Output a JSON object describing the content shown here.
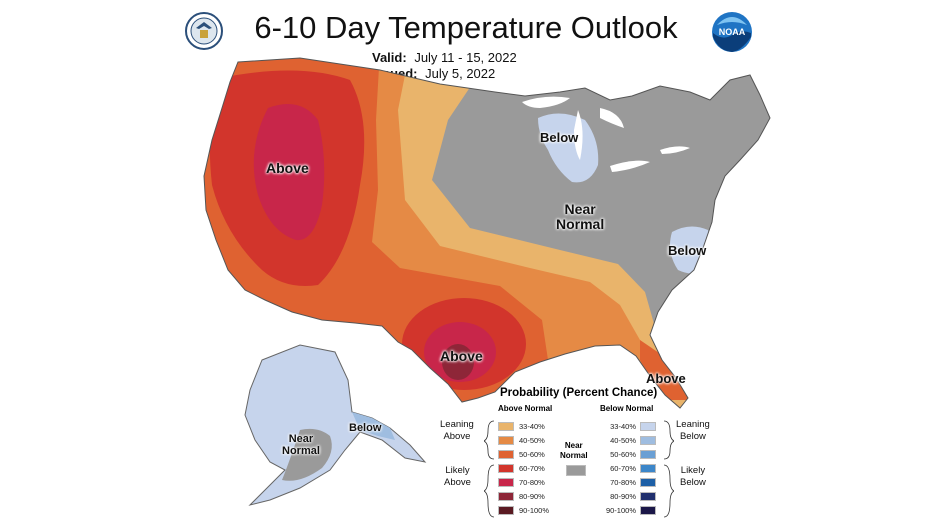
{
  "header": {
    "title": "6-10 Day Temperature Outlook",
    "valid_label": "Valid:",
    "valid_value": "July 11 - 15, 2022",
    "issued_label": "Issued:",
    "issued_value": "July 5, 2022"
  },
  "logos": {
    "left": "commerce-seal",
    "right_text": "NOAA"
  },
  "map": {
    "labels": {
      "above_west": "Above",
      "above_texas": "Above",
      "above_florida": "Above",
      "below_michigan": "Below",
      "below_carolina": "Below",
      "near_normal_line1": "Near",
      "near_normal_line2": "Normal",
      "ak_near_line1": "Near",
      "ak_near_line2": "Normal",
      "ak_below": "Below"
    }
  },
  "legend": {
    "title": "Probability (Percent Chance)",
    "above_header": "Above Normal",
    "below_header": "Below Normal",
    "leaning_above": [
      "Leaning",
      "Above"
    ],
    "likely_above": [
      "Likely",
      "Above"
    ],
    "leaning_below": [
      "Leaning",
      "Below"
    ],
    "likely_below": [
      "Likely",
      "Below"
    ],
    "near_normal": [
      "Near",
      "Normal"
    ],
    "above_levels": [
      {
        "label": "33-40%",
        "color": "#e9b46b"
      },
      {
        "label": "40-50%",
        "color": "#e58a45"
      },
      {
        "label": "50-60%",
        "color": "#df6231"
      },
      {
        "label": "60-70%",
        "color": "#d2352c"
      },
      {
        "label": "70-80%",
        "color": "#c8264a"
      },
      {
        "label": "80-90%",
        "color": "#8e2638"
      },
      {
        "label": "90-100%",
        "color": "#5a1a22"
      }
    ],
    "below_levels": [
      {
        "label": "33-40%",
        "color": "#c6d4ec"
      },
      {
        "label": "40-50%",
        "color": "#9fbde0"
      },
      {
        "label": "50-60%",
        "color": "#6a9fd4"
      },
      {
        "label": "60-70%",
        "color": "#3c86c9"
      },
      {
        "label": "70-80%",
        "color": "#1d5fa6"
      },
      {
        "label": "80-90%",
        "color": "#21306e"
      },
      {
        "label": "90-100%",
        "color": "#1b1748"
      }
    ],
    "near_color": "#9a9a9a"
  }
}
